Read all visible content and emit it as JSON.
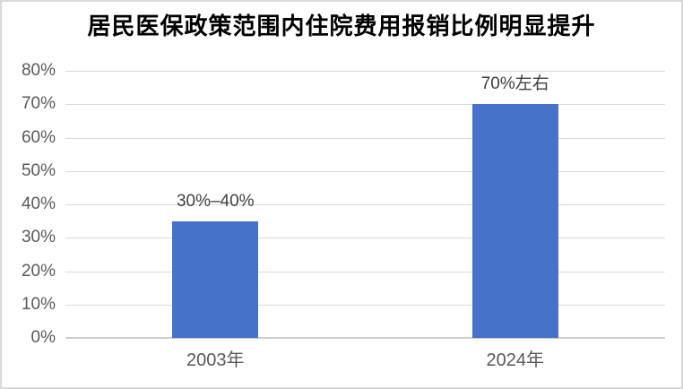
{
  "chart_data": {
    "type": "bar",
    "title": "居民医保政策范围内住院费用报销比例明显提升",
    "categories": [
      "2003年",
      "2024年"
    ],
    "values": [
      35,
      70
    ],
    "data_labels": [
      "30%–40%",
      "70%左右"
    ],
    "xlabel": "",
    "ylabel": "",
    "ylim": [
      0,
      80
    ],
    "ytick_step": 10,
    "ytick_labels": [
      "0%",
      "10%",
      "20%",
      "30%",
      "40%",
      "50%",
      "60%",
      "70%",
      "80%"
    ],
    "grid": true,
    "legend": "none",
    "colors": {
      "bar": "#4673c9",
      "gridline": "#d9d9d9",
      "axis_line": "#cfcdcd",
      "tick_label": "#595959",
      "data_label": "#404040",
      "title": "#000000",
      "frame_border": "#d9d9d9",
      "background": "#ffffff"
    }
  }
}
